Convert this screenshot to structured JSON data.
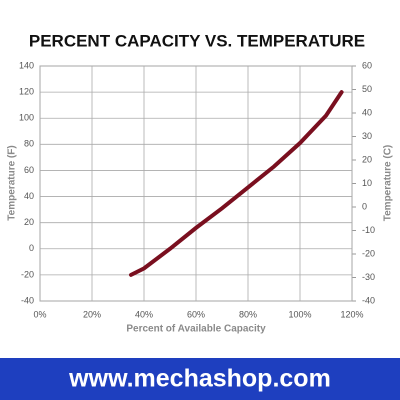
{
  "chart_data": {
    "type": "line",
    "title": "PERCENT CAPACITY VS. TEMPERATURE",
    "x_label": "Percent of Available Capacity",
    "y_label": "Temperature (F)",
    "y2_label": "Temperature (C)",
    "x": [
      35,
      40,
      50,
      60,
      70,
      80,
      90,
      100,
      110,
      116
    ],
    "series": [
      {
        "color": "#7a0f1f",
        "values": [
          -20,
          -15,
          0,
          16,
          31,
          47,
          63,
          81,
          102,
          120
        ]
      }
    ],
    "xlim": [
      0,
      120
    ],
    "xticks": [
      {
        "value": 0,
        "label": "0%"
      },
      {
        "value": 20,
        "label": "20%"
      },
      {
        "value": 40,
        "label": "40%"
      },
      {
        "value": 60,
        "label": "60%"
      },
      {
        "value": 80,
        "label": "80%"
      },
      {
        "value": 100,
        "label": "100%"
      },
      {
        "value": 120,
        "label": "120%"
      }
    ],
    "ylim": [
      -40,
      140
    ],
    "yticks": [
      -40,
      -20,
      0,
      20,
      40,
      60,
      80,
      100,
      120,
      140
    ],
    "y2lim": [
      -40,
      60
    ],
    "y2ticks": [
      -40,
      -30,
      -20,
      -10,
      0,
      10,
      20,
      30,
      40,
      50,
      60
    ],
    "grid": true
  },
  "footer": {
    "text": "www.mechashop.com"
  }
}
